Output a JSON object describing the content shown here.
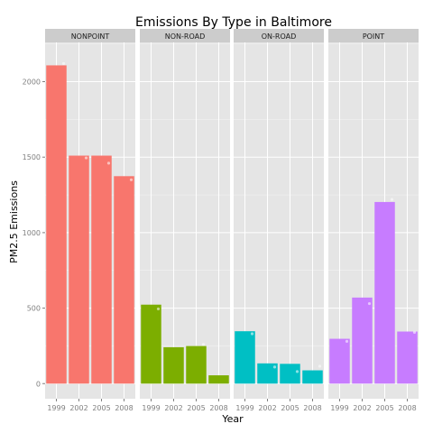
{
  "chart_data": {
    "type": "bar",
    "title": "Emissions By Type in Baltimore",
    "xlabel": "Year",
    "ylabel": "PM2.5 Emissions",
    "ylim": [
      -100,
      2260
    ],
    "yticks": [
      0,
      500,
      1000,
      1500,
      2000
    ],
    "categories": [
      "1999",
      "2002",
      "2005",
      "2008"
    ],
    "series": [
      {
        "name": "NONPOINT",
        "values": [
          2108,
          1510,
          1510,
          1374
        ],
        "color": "#f8766d"
      },
      {
        "name": "NON-ROAD",
        "values": [
          523,
          241,
          249,
          55
        ],
        "color": "#7cae00"
      },
      {
        "name": "ON-ROAD",
        "values": [
          347,
          134,
          131,
          88
        ],
        "color": "#00bfc4"
      },
      {
        "name": "POINT",
        "values": [
          297,
          570,
          1203,
          345
        ],
        "color": "#c77cff"
      }
    ],
    "grid": true,
    "legend": "none",
    "faint_points": [
      {
        "panel": 0,
        "x": "1999",
        "y": 2120
      },
      {
        "panel": 0,
        "x": "2002",
        "y": 1495
      },
      {
        "panel": 0,
        "x": "2005",
        "y": 1460
      },
      {
        "panel": 0,
        "x": "2008",
        "y": 1350
      },
      {
        "panel": 1,
        "x": "1999",
        "y": 495
      },
      {
        "panel": 1,
        "x": "2005",
        "y": 260
      },
      {
        "panel": 2,
        "x": "1999",
        "y": 330
      },
      {
        "panel": 2,
        "x": "2002",
        "y": 110
      },
      {
        "panel": 2,
        "x": "2005",
        "y": 80
      },
      {
        "panel": 2,
        "x": "2008",
        "y": 115
      },
      {
        "panel": 3,
        "x": "1999",
        "y": 280
      },
      {
        "panel": 3,
        "x": "2002",
        "y": 530
      },
      {
        "panel": 3,
        "x": "2005",
        "y": 1220
      },
      {
        "panel": 3,
        "x": "2008",
        "y": 340
      }
    ]
  }
}
